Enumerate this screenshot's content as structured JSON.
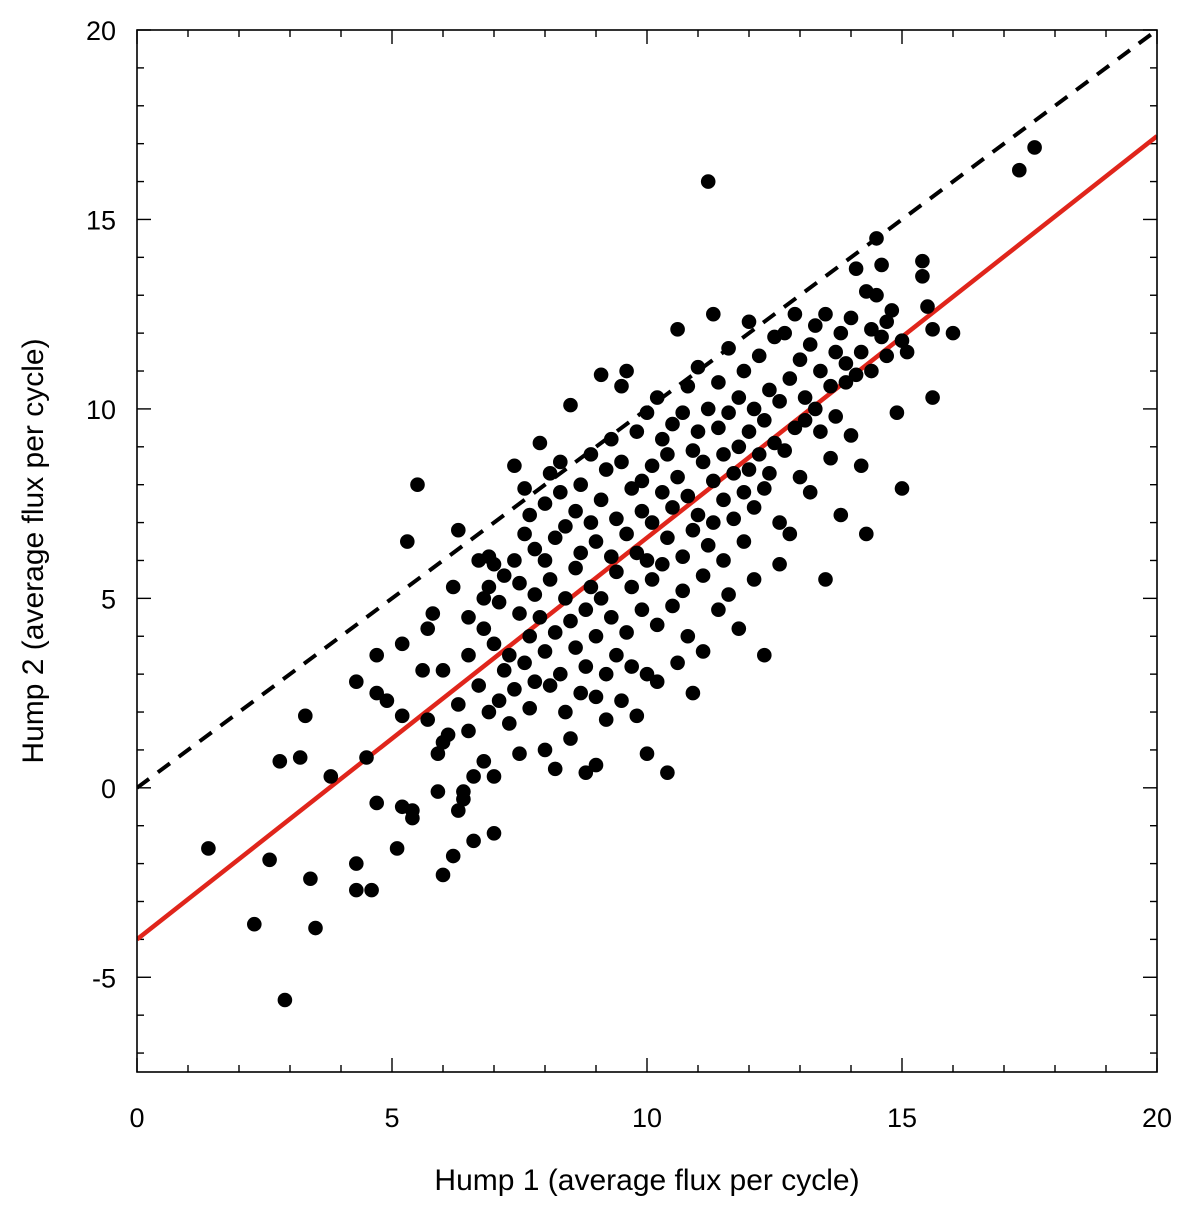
{
  "chart_data": {
    "type": "scatter",
    "xlabel": "Hump 1 (average flux per cycle)",
    "ylabel": "Hump 2 (average flux per cycle)",
    "xlim": [
      0,
      20
    ],
    "ylim": [
      -7.5,
      20
    ],
    "x_ticks": [
      0,
      5,
      10,
      15,
      20
    ],
    "y_ticks": [
      -5,
      0,
      5,
      10,
      15,
      20
    ],
    "x_tick_labels": [
      "0",
      "5",
      "10",
      "15",
      "20"
    ],
    "y_tick_labels": [
      "-5",
      "0",
      "5",
      "10",
      "15",
      "20"
    ],
    "marker_color": "#000000",
    "reference_lines": [
      {
        "style": "dashed",
        "color": "#000000",
        "x": [
          0,
          20
        ],
        "y": [
          0,
          20
        ]
      },
      {
        "style": "solid",
        "color": "#e0251b",
        "x": [
          0,
          20
        ],
        "y": [
          -4.0,
          17.2
        ]
      }
    ],
    "series": [
      {
        "points": [
          [
            1.4,
            -1.6
          ],
          [
            2.3,
            -3.6
          ],
          [
            2.6,
            -1.9
          ],
          [
            2.8,
            0.7
          ],
          [
            2.9,
            -5.6
          ],
          [
            3.2,
            0.8
          ],
          [
            3.3,
            1.9
          ],
          [
            3.4,
            -2.4
          ],
          [
            3.5,
            -3.7
          ],
          [
            3.8,
            0.3
          ],
          [
            4.3,
            -2.0
          ],
          [
            4.3,
            -2.7
          ],
          [
            4.3,
            2.8
          ],
          [
            4.5,
            0.8
          ],
          [
            4.6,
            -2.7
          ],
          [
            4.7,
            -0.4
          ],
          [
            4.7,
            2.5
          ],
          [
            4.7,
            3.5
          ],
          [
            4.9,
            2.3
          ],
          [
            5.1,
            -1.6
          ],
          [
            5.2,
            -0.5
          ],
          [
            5.2,
            1.9
          ],
          [
            5.2,
            3.8
          ],
          [
            5.3,
            6.5
          ],
          [
            5.4,
            -0.6
          ],
          [
            5.4,
            -0.8
          ],
          [
            5.5,
            8.0
          ],
          [
            5.6,
            3.1
          ],
          [
            5.7,
            4.2
          ],
          [
            5.7,
            1.8
          ],
          [
            5.8,
            4.6
          ],
          [
            5.9,
            0.9
          ],
          [
            5.9,
            -0.1
          ],
          [
            6.0,
            1.2
          ],
          [
            6.0,
            -2.3
          ],
          [
            6.0,
            3.1
          ],
          [
            6.1,
            1.4
          ],
          [
            6.2,
            -1.8
          ],
          [
            6.2,
            5.3
          ],
          [
            6.3,
            -0.6
          ],
          [
            6.3,
            6.8
          ],
          [
            6.3,
            2.2
          ],
          [
            6.4,
            -0.3
          ],
          [
            6.4,
            -0.1
          ],
          [
            6.5,
            3.5
          ],
          [
            6.5,
            4.5
          ],
          [
            6.5,
            1.5
          ],
          [
            6.6,
            -1.4
          ],
          [
            6.6,
            0.3
          ],
          [
            6.7,
            2.7
          ],
          [
            6.7,
            6.0
          ],
          [
            6.8,
            0.7
          ],
          [
            6.8,
            5.0
          ],
          [
            6.8,
            4.2
          ],
          [
            6.9,
            2.0
          ],
          [
            6.9,
            5.3
          ],
          [
            6.9,
            6.1
          ],
          [
            7.0,
            0.3
          ],
          [
            7.0,
            -1.2
          ],
          [
            7.0,
            3.8
          ],
          [
            7.0,
            5.9
          ],
          [
            7.1,
            2.3
          ],
          [
            7.1,
            4.9
          ],
          [
            7.2,
            3.1
          ],
          [
            7.2,
            5.6
          ],
          [
            7.3,
            1.7
          ],
          [
            7.3,
            3.5
          ],
          [
            7.4,
            6.0
          ],
          [
            7.4,
            2.6
          ],
          [
            7.4,
            8.5
          ],
          [
            7.5,
            4.6
          ],
          [
            7.5,
            0.9
          ],
          [
            7.5,
            5.4
          ],
          [
            7.6,
            7.9
          ],
          [
            7.6,
            6.7
          ],
          [
            7.6,
            3.3
          ],
          [
            7.7,
            2.1
          ],
          [
            7.7,
            4.0
          ],
          [
            7.7,
            7.2
          ],
          [
            7.8,
            5.1
          ],
          [
            7.8,
            2.8
          ],
          [
            7.8,
            6.3
          ],
          [
            7.9,
            9.1
          ],
          [
            7.9,
            4.5
          ],
          [
            8.0,
            1.0
          ],
          [
            8.0,
            6.0
          ],
          [
            8.0,
            3.6
          ],
          [
            8.0,
            7.5
          ],
          [
            8.1,
            8.3
          ],
          [
            8.1,
            5.5
          ],
          [
            8.1,
            2.7
          ],
          [
            8.2,
            4.1
          ],
          [
            8.2,
            6.6
          ],
          [
            8.2,
            0.5
          ],
          [
            8.3,
            3.0
          ],
          [
            8.3,
            7.8
          ],
          [
            8.3,
            8.6
          ],
          [
            8.4,
            5.0
          ],
          [
            8.4,
            2.0
          ],
          [
            8.4,
            6.9
          ],
          [
            8.5,
            10.1
          ],
          [
            8.5,
            4.4
          ],
          [
            8.5,
            1.3
          ],
          [
            8.6,
            7.3
          ],
          [
            8.6,
            3.7
          ],
          [
            8.6,
            5.8
          ],
          [
            8.7,
            2.5
          ],
          [
            8.7,
            8.0
          ],
          [
            8.7,
            6.2
          ],
          [
            8.8,
            4.7
          ],
          [
            8.8,
            0.4
          ],
          [
            8.8,
            3.2
          ],
          [
            8.9,
            7.0
          ],
          [
            8.9,
            5.3
          ],
          [
            8.9,
            8.8
          ],
          [
            9.0,
            0.6
          ],
          [
            9.0,
            2.4
          ],
          [
            9.0,
            6.5
          ],
          [
            9.0,
            4.0
          ],
          [
            9.1,
            10.9
          ],
          [
            9.1,
            7.6
          ],
          [
            9.1,
            5.0
          ],
          [
            9.2,
            3.0
          ],
          [
            9.2,
            8.4
          ],
          [
            9.2,
            1.8
          ],
          [
            9.3,
            6.1
          ],
          [
            9.3,
            9.2
          ],
          [
            9.3,
            4.5
          ],
          [
            9.4,
            7.1
          ],
          [
            9.4,
            3.5
          ],
          [
            9.4,
            5.7
          ],
          [
            9.5,
            8.6
          ],
          [
            9.5,
            2.3
          ],
          [
            9.5,
            10.6
          ],
          [
            9.6,
            6.7
          ],
          [
            9.6,
            4.1
          ],
          [
            9.6,
            11.0
          ],
          [
            9.7,
            7.9
          ],
          [
            9.7,
            5.3
          ],
          [
            9.7,
            3.2
          ],
          [
            9.8,
            9.4
          ],
          [
            9.8,
            6.2
          ],
          [
            9.8,
            1.9
          ],
          [
            9.9,
            8.1
          ],
          [
            9.9,
            4.7
          ],
          [
            9.9,
            7.3
          ],
          [
            10.0,
            0.9
          ],
          [
            10.0,
            9.9
          ],
          [
            10.0,
            6.0
          ],
          [
            10.0,
            3.0
          ],
          [
            10.1,
            8.5
          ],
          [
            10.1,
            5.5
          ],
          [
            10.1,
            7.0
          ],
          [
            10.2,
            10.3
          ],
          [
            10.2,
            4.3
          ],
          [
            10.2,
            2.8
          ],
          [
            10.3,
            7.8
          ],
          [
            10.3,
            9.2
          ],
          [
            10.3,
            5.9
          ],
          [
            10.4,
            0.4
          ],
          [
            10.4,
            8.8
          ],
          [
            10.4,
            6.6
          ],
          [
            10.5,
            9.6
          ],
          [
            10.5,
            4.8
          ],
          [
            10.5,
            7.4
          ],
          [
            10.6,
            12.1
          ],
          [
            10.6,
            3.3
          ],
          [
            10.6,
            8.2
          ],
          [
            10.7,
            6.1
          ],
          [
            10.7,
            9.9
          ],
          [
            10.7,
            5.2
          ],
          [
            10.8,
            10.6
          ],
          [
            10.8,
            7.7
          ],
          [
            10.8,
            4.0
          ],
          [
            10.9,
            8.9
          ],
          [
            10.9,
            6.8
          ],
          [
            10.9,
            2.5
          ],
          [
            11.0,
            9.4
          ],
          [
            11.0,
            7.2
          ],
          [
            11.0,
            11.1
          ],
          [
            11.1,
            5.6
          ],
          [
            11.1,
            8.6
          ],
          [
            11.1,
            3.6
          ],
          [
            11.2,
            10.0
          ],
          [
            11.2,
            6.4
          ],
          [
            11.2,
            16.0
          ],
          [
            11.3,
            8.1
          ],
          [
            11.3,
            12.5
          ],
          [
            11.3,
            7.0
          ],
          [
            11.4,
            9.5
          ],
          [
            11.4,
            4.7
          ],
          [
            11.4,
            10.7
          ],
          [
            11.5,
            7.6
          ],
          [
            11.5,
            8.8
          ],
          [
            11.5,
            6.0
          ],
          [
            11.6,
            9.9
          ],
          [
            11.6,
            11.6
          ],
          [
            11.6,
            5.1
          ],
          [
            11.7,
            8.3
          ],
          [
            11.7,
            7.1
          ],
          [
            11.8,
            10.3
          ],
          [
            11.8,
            9.0
          ],
          [
            11.8,
            4.2
          ],
          [
            11.9,
            7.8
          ],
          [
            11.9,
            11.0
          ],
          [
            11.9,
            6.5
          ],
          [
            12.0,
            9.4
          ],
          [
            12.0,
            12.3
          ],
          [
            12.0,
            8.4
          ],
          [
            12.1,
            7.4
          ],
          [
            12.1,
            10.0
          ],
          [
            12.1,
            5.5
          ],
          [
            12.2,
            8.8
          ],
          [
            12.2,
            11.4
          ],
          [
            12.3,
            3.5
          ],
          [
            12.3,
            9.7
          ],
          [
            12.3,
            7.9
          ],
          [
            12.4,
            10.5
          ],
          [
            12.4,
            8.3
          ],
          [
            12.5,
            11.9
          ],
          [
            12.5,
            9.1
          ],
          [
            12.6,
            7.0
          ],
          [
            12.6,
            10.2
          ],
          [
            12.6,
            5.9
          ],
          [
            12.7,
            12.0
          ],
          [
            12.7,
            8.9
          ],
          [
            12.8,
            10.8
          ],
          [
            12.8,
            6.7
          ],
          [
            12.9,
            9.5
          ],
          [
            12.9,
            12.5
          ],
          [
            13.0,
            11.3
          ],
          [
            13.0,
            8.2
          ],
          [
            13.1,
            10.3
          ],
          [
            13.1,
            9.7
          ],
          [
            13.2,
            11.7
          ],
          [
            13.2,
            7.8
          ],
          [
            13.3,
            10.0
          ],
          [
            13.3,
            12.2
          ],
          [
            13.4,
            9.4
          ],
          [
            13.4,
            11.0
          ],
          [
            13.5,
            12.5
          ],
          [
            13.5,
            5.5
          ],
          [
            13.6,
            10.6
          ],
          [
            13.6,
            8.7
          ],
          [
            13.7,
            11.5
          ],
          [
            13.7,
            9.8
          ],
          [
            13.8,
            12.0
          ],
          [
            13.8,
            7.2
          ],
          [
            13.9,
            10.7
          ],
          [
            13.9,
            11.2
          ],
          [
            14.0,
            12.4
          ],
          [
            14.0,
            9.3
          ],
          [
            14.1,
            13.7
          ],
          [
            14.1,
            10.9
          ],
          [
            14.2,
            11.5
          ],
          [
            14.2,
            8.5
          ],
          [
            14.3,
            13.1
          ],
          [
            14.3,
            6.7
          ],
          [
            14.4,
            12.1
          ],
          [
            14.4,
            11.0
          ],
          [
            14.5,
            13.0
          ],
          [
            14.5,
            14.5
          ],
          [
            14.6,
            11.9
          ],
          [
            14.6,
            13.8
          ],
          [
            14.7,
            12.3
          ],
          [
            14.7,
            11.4
          ],
          [
            14.8,
            12.6
          ],
          [
            14.9,
            9.9
          ],
          [
            15.0,
            7.9
          ],
          [
            15.0,
            11.8
          ],
          [
            15.1,
            11.5
          ],
          [
            15.4,
            13.9
          ],
          [
            15.4,
            13.5
          ],
          [
            15.5,
            12.7
          ],
          [
            15.6,
            10.3
          ],
          [
            15.6,
            12.1
          ],
          [
            16.0,
            12.0
          ],
          [
            17.3,
            16.3
          ],
          [
            17.6,
            16.9
          ]
        ]
      }
    ]
  }
}
